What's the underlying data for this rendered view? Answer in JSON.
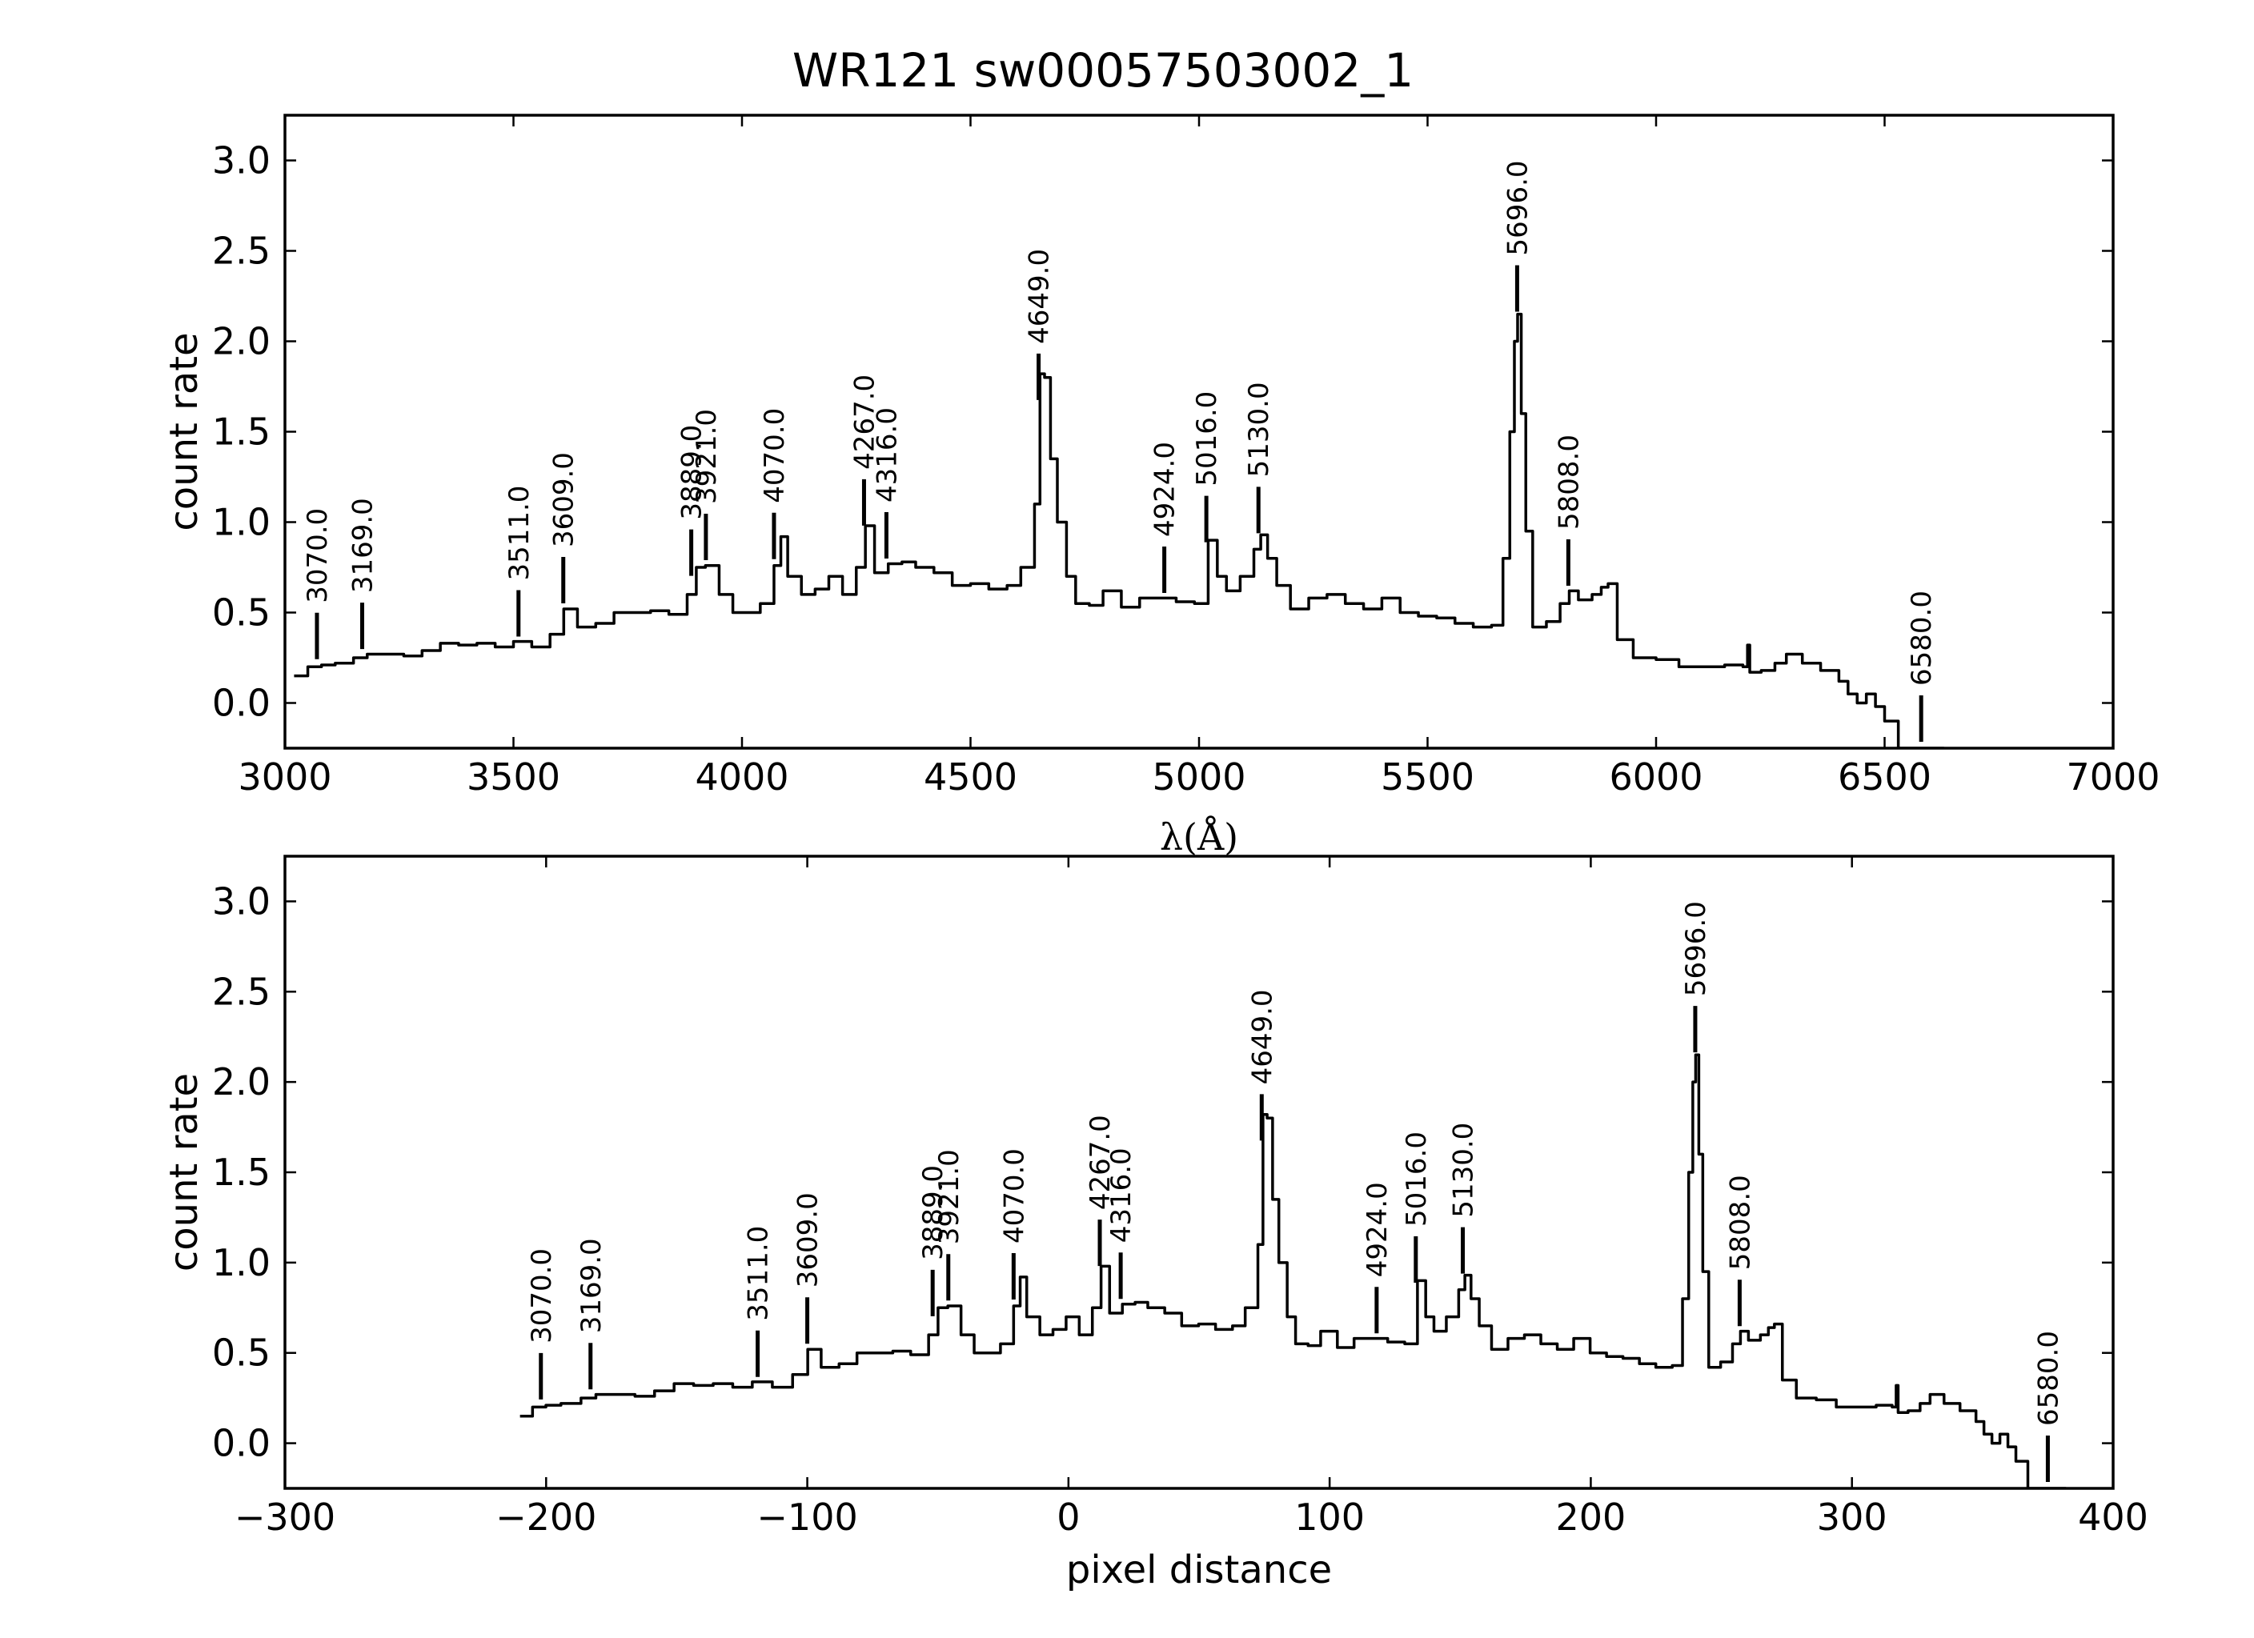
{
  "chart_data": {
    "title": "WR121  sw00057503002_1",
    "lines": [
      3070.0,
      3169.0,
      3511.0,
      3609.0,
      3889.0,
      3921.0,
      4070.0,
      4267.0,
      4316.0,
      4649.0,
      4924.0,
      5016.0,
      5130.0,
      5696.0,
      5808.0,
      6580.0
    ],
    "line_labels": [
      "3070.0",
      "3169.0",
      "3511.0",
      "3609.0",
      "3889.0",
      "3921.0",
      "4070.0",
      "4267.0",
      "4316.0",
      "4649.0",
      "4924.0",
      "5016.0",
      "5130.0",
      "5696.0",
      "5808.0",
      "6580.0"
    ],
    "spectrum": {
      "wavelength": [
        3020,
        3050,
        3080,
        3110,
        3150,
        3180,
        3220,
        3260,
        3300,
        3340,
        3380,
        3420,
        3460,
        3500,
        3540,
        3580,
        3610,
        3640,
        3680,
        3720,
        3760,
        3800,
        3840,
        3880,
        3900,
        3920,
        3950,
        3980,
        4010,
        4040,
        4070,
        4085,
        4100,
        4130,
        4160,
        4190,
        4220,
        4250,
        4270,
        4290,
        4320,
        4350,
        4380,
        4420,
        4460,
        4500,
        4540,
        4580,
        4610,
        4640,
        4652,
        4662,
        4675,
        4690,
        4710,
        4730,
        4760,
        4790,
        4830,
        4870,
        4910,
        4950,
        4990,
        5020,
        5040,
        5060,
        5090,
        5120,
        5135,
        5150,
        5170,
        5200,
        5240,
        5280,
        5320,
        5360,
        5400,
        5440,
        5480,
        5520,
        5560,
        5600,
        5640,
        5665,
        5680,
        5690,
        5697,
        5705,
        5715,
        5730,
        5760,
        5790,
        5810,
        5830,
        5860,
        5880,
        5895,
        5915,
        5950,
        6000,
        6050,
        6100,
        6150,
        6190,
        6200,
        6205,
        6230,
        6260,
        6285,
        6320,
        6360,
        6400,
        6420,
        6440,
        6460,
        6480,
        6500,
        6530,
        6560,
        6600,
        6630
      ],
      "count_rate": [
        0.15,
        0.2,
        0.21,
        0.22,
        0.25,
        0.27,
        0.27,
        0.26,
        0.29,
        0.33,
        0.32,
        0.33,
        0.31,
        0.34,
        0.31,
        0.38,
        0.52,
        0.42,
        0.44,
        0.5,
        0.5,
        0.51,
        0.49,
        0.6,
        0.75,
        0.76,
        0.6,
        0.5,
        0.5,
        0.55,
        0.76,
        0.92,
        0.7,
        0.6,
        0.63,
        0.7,
        0.6,
        0.75,
        0.98,
        0.72,
        0.77,
        0.78,
        0.75,
        0.72,
        0.65,
        0.66,
        0.63,
        0.65,
        0.75,
        1.1,
        1.82,
        1.8,
        1.35,
        1.0,
        0.7,
        0.55,
        0.54,
        0.62,
        0.53,
        0.58,
        0.58,
        0.56,
        0.55,
        0.9,
        0.7,
        0.62,
        0.7,
        0.85,
        0.93,
        0.8,
        0.65,
        0.52,
        0.58,
        0.6,
        0.55,
        0.52,
        0.58,
        0.5,
        0.48,
        0.47,
        0.44,
        0.42,
        0.43,
        0.8,
        1.5,
        2.0,
        2.15,
        1.6,
        0.95,
        0.42,
        0.45,
        0.55,
        0.62,
        0.57,
        0.6,
        0.64,
        0.66,
        0.35,
        0.25,
        0.24,
        0.2,
        0.2,
        0.21,
        0.2,
        0.32,
        0.17,
        0.18,
        0.22,
        0.27,
        0.22,
        0.18,
        0.12,
        0.05,
        0.0,
        0.05,
        -0.02,
        -0.1,
        -0.25,
        -0.25,
        -0.25,
        -0.25
      ]
    },
    "panels": [
      {
        "type": "line",
        "x_axis": "wavelength",
        "xlabel": "λ(Å)",
        "ylabel": "count rate",
        "xlim": [
          3000,
          7000
        ],
        "ylim": [
          -0.25,
          3.25
        ],
        "xticks": [
          3000,
          3500,
          4000,
          4500,
          5000,
          5500,
          6000,
          6500,
          7000
        ],
        "xtick_labels": [
          "3000",
          "3500",
          "4000",
          "4500",
          "5000",
          "5500",
          "6000",
          "6500",
          "7000"
        ],
        "yticks": [
          0.0,
          0.5,
          1.0,
          1.5,
          2.0,
          2.5,
          3.0
        ],
        "ytick_labels": [
          "0.0",
          "0.5",
          "1.0",
          "1.5",
          "2.0",
          "2.5",
          "3.0"
        ]
      },
      {
        "type": "line",
        "x_axis": "pixel",
        "xlabel": "pixel distance",
        "ylabel": "count rate",
        "xlim": [
          -300,
          400
        ],
        "ylim": [
          -0.25,
          3.25
        ],
        "xticks": [
          -300,
          -200,
          -100,
          0,
          100,
          200,
          300,
          400
        ],
        "xtick_labels": [
          "−300",
          "−200",
          "−100",
          "0",
          "100",
          "200",
          "300",
          "400"
        ],
        "yticks": [
          0.0,
          0.5,
          1.0,
          1.5,
          2.0,
          2.5,
          3.0
        ],
        "ytick_labels": [
          "0.0",
          "0.5",
          "1.0",
          "1.5",
          "2.0",
          "2.5",
          "3.0"
        ],
        "pixel_of_wavelength": {
          "wavelength": [
            3020,
            3070,
            3169,
            3511,
            3609,
            3889,
            3921,
            4070,
            4267,
            4316,
            4649,
            4924,
            5016,
            5130,
            5696,
            5808,
            6580,
            6630
          ],
          "pixel": [
            -210,
            -202,
            -183,
            -119,
            -100,
            -52,
            -46,
            -21,
            12,
            20,
            74,
            118,
            133,
            151,
            240,
            257,
            375,
            382
          ]
        }
      }
    ],
    "grid": false
  }
}
